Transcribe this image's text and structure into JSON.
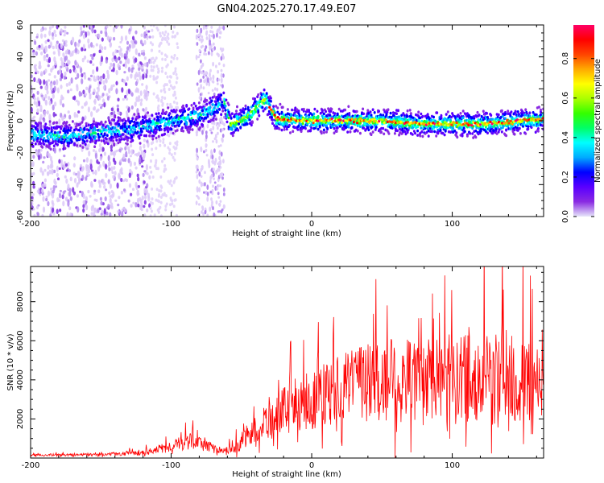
{
  "figure": {
    "title": "GN04.2025.270.17.49.E07"
  },
  "chart_data": [
    {
      "type": "heatmap",
      "xlabel": "Height of straight line (km)",
      "ylabel": "Frequency (Hz)",
      "xlim": [
        -200,
        165
      ],
      "ylim": [
        -60,
        60
      ],
      "xticks": [
        -200,
        -100,
        0,
        100
      ],
      "yticks": [
        -60,
        -40,
        -20,
        0,
        20,
        40,
        60
      ],
      "colorbar": {
        "label": "Normalized spectral amplitude",
        "range": [
          0,
          0.97
        ],
        "ticks": [
          0.0,
          0.2,
          0.4,
          0.6,
          0.8
        ],
        "colors": [
          "#e6e6fa",
          "#8a2be2",
          "#5a00ff",
          "#0000ff",
          "#00aaff",
          "#00ffff",
          "#00ff66",
          "#33ff00",
          "#aaff00",
          "#ffff00",
          "#ffaa00",
          "#ff4400",
          "#ff0000",
          "#ff0066"
        ]
      },
      "ridge": {
        "x": [
          -200,
          -175,
          -150,
          -125,
          -100,
          -80,
          -62,
          -58,
          -45,
          -33,
          -25,
          0,
          25,
          50,
          75,
          100,
          125,
          150,
          165
        ],
        "frequency": [
          -8,
          -10,
          -7,
          -5,
          0,
          3,
          12,
          -3,
          3,
          14,
          1,
          0,
          0,
          0,
          -2,
          -2,
          -2,
          0,
          1
        ]
      }
    },
    {
      "type": "line",
      "xlabel": "Height of straight line (km)",
      "ylabel": "SNR (10 * v/v)",
      "xlim": [
        -200,
        165
      ],
      "ylim": [
        0,
        9800
      ],
      "xticks": [
        -200,
        -100,
        0,
        100
      ],
      "yticks": [
        2000,
        4000,
        6000,
        8000
      ],
      "color": "#ff0000",
      "envelope": {
        "x": [
          -200,
          -150,
          -120,
          -100,
          -85,
          -75,
          -65,
          -55,
          -45,
          -35,
          -20,
          0,
          20,
          40,
          60,
          80,
          100,
          120,
          140,
          165
        ],
        "mean": [
          150,
          180,
          260,
          600,
          900,
          700,
          300,
          500,
          1200,
          1800,
          2400,
          3000,
          3500,
          3900,
          4000,
          4000,
          4100,
          4200,
          4000,
          3800
        ],
        "spread": [
          100,
          130,
          220,
          550,
          800,
          600,
          280,
          500,
          1100,
          1700,
          2200,
          2800,
          3200,
          3800,
          4500,
          3800,
          3600,
          4200,
          5200,
          3000
        ]
      }
    }
  ]
}
